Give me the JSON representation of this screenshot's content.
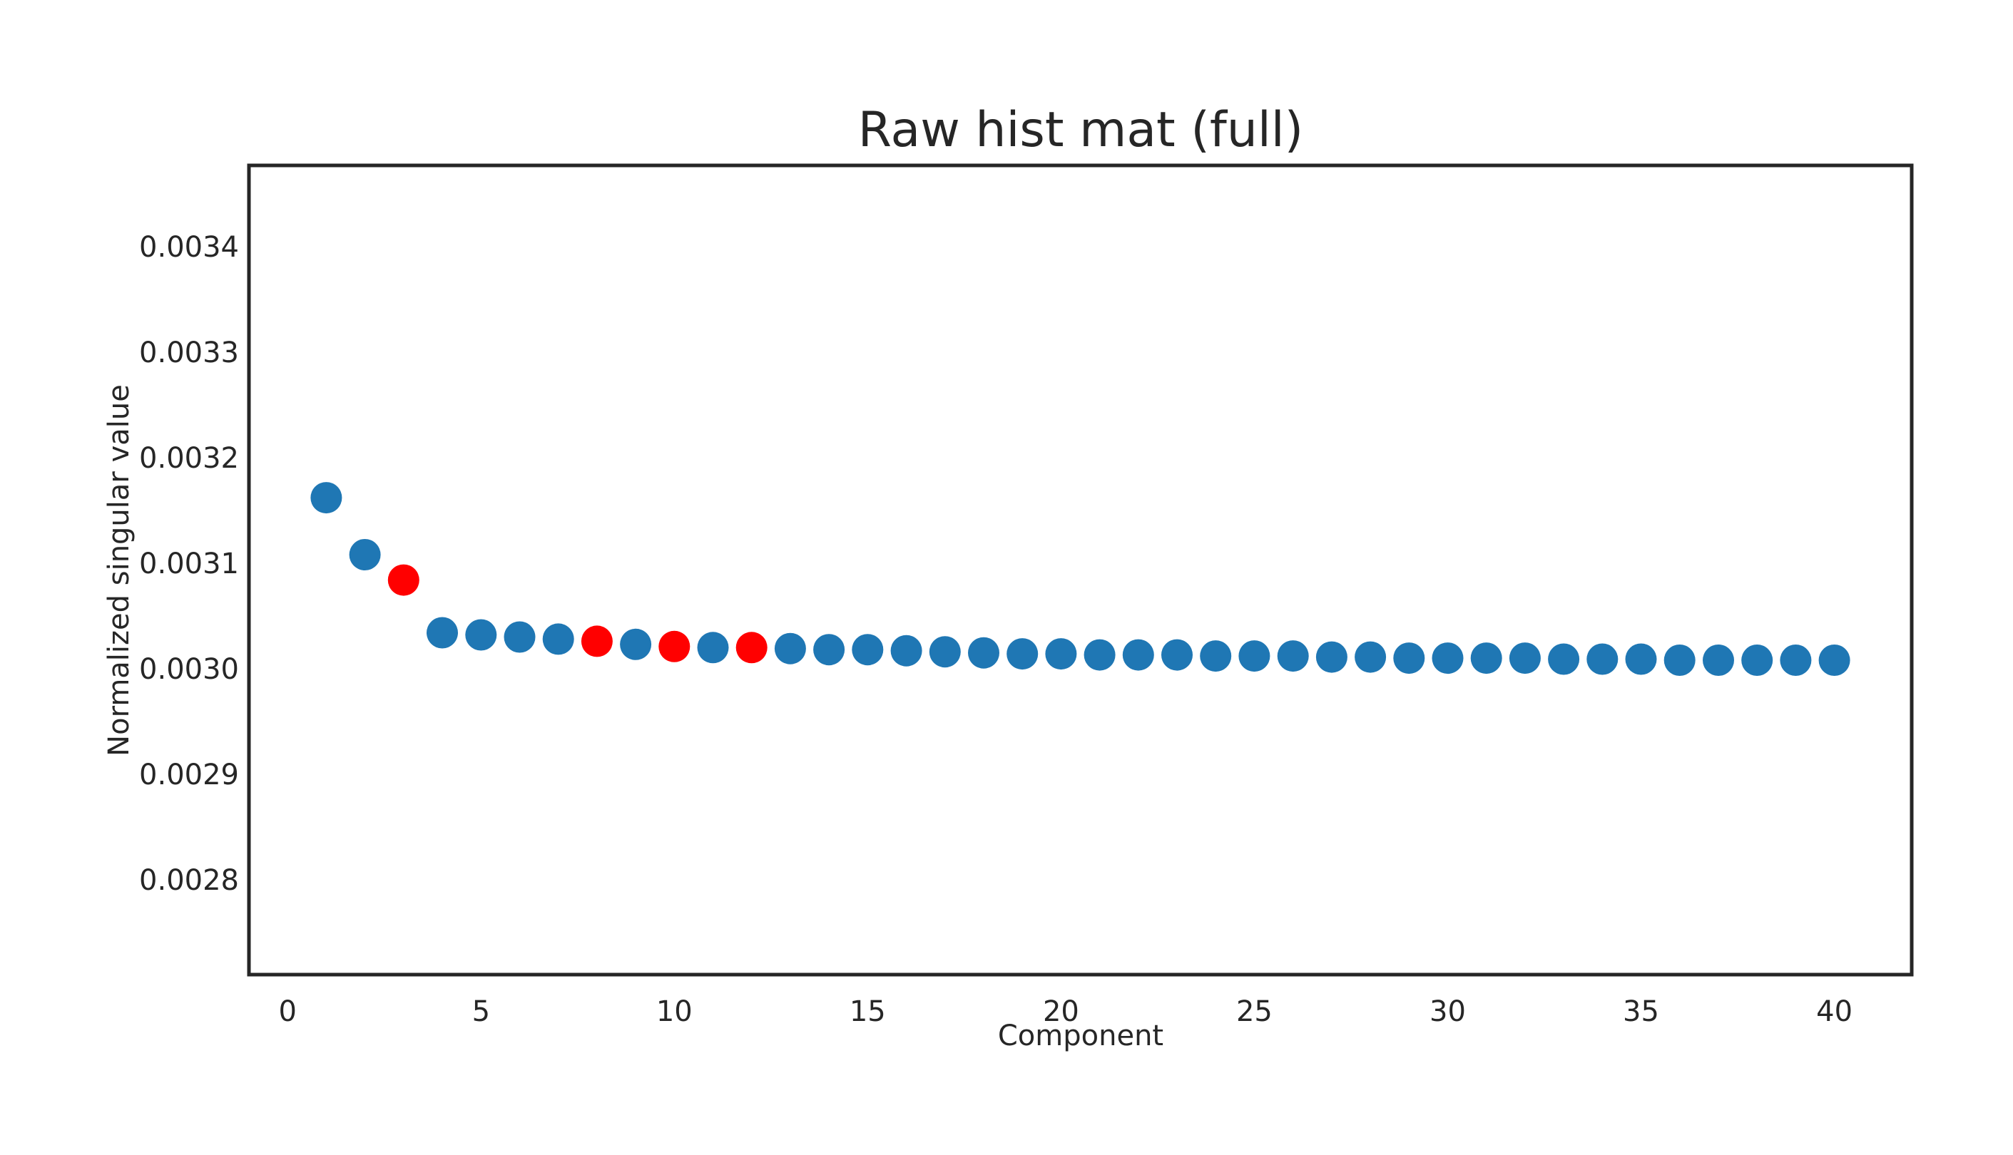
{
  "chart_data": {
    "type": "scatter",
    "title": "Raw hist mat (full)",
    "xlabel": "Component",
    "ylabel": "Normalized singular value",
    "xlim": [
      -1,
      42
    ],
    "ylim": [
      0.00271,
      0.003477
    ],
    "xticks": [
      0,
      5,
      10,
      15,
      20,
      25,
      30,
      35,
      40
    ],
    "xtick_labels": [
      "0",
      "5",
      "10",
      "15",
      "20",
      "25",
      "30",
      "35",
      "40"
    ],
    "yticks": [
      0.0028,
      0.0029,
      0.003,
      0.0031,
      0.0032,
      0.0033,
      0.0034
    ],
    "ytick_labels": [
      "0.0028",
      "0.0029",
      "0.0030",
      "0.0031",
      "0.0032",
      "0.0033",
      "0.0034"
    ],
    "grid": false,
    "colors": {
      "default": "#1f77b4",
      "highlight": "#ff0000",
      "frame": "#262626",
      "text": "#262626"
    },
    "points": [
      {
        "x": 1,
        "y": 0.003162,
        "highlight": false
      },
      {
        "x": 2,
        "y": 0.003108,
        "highlight": false
      },
      {
        "x": 3,
        "y": 0.003084,
        "highlight": true
      },
      {
        "x": 4,
        "y": 0.003034,
        "highlight": false
      },
      {
        "x": 5,
        "y": 0.003032,
        "highlight": false
      },
      {
        "x": 6,
        "y": 0.00303,
        "highlight": false
      },
      {
        "x": 7,
        "y": 0.003028,
        "highlight": false
      },
      {
        "x": 8,
        "y": 0.003026,
        "highlight": true
      },
      {
        "x": 9,
        "y": 0.003023,
        "highlight": false
      },
      {
        "x": 10,
        "y": 0.003021,
        "highlight": true
      },
      {
        "x": 11,
        "y": 0.00302,
        "highlight": false
      },
      {
        "x": 12,
        "y": 0.00302,
        "highlight": true
      },
      {
        "x": 13,
        "y": 0.003019,
        "highlight": false
      },
      {
        "x": 14,
        "y": 0.003018,
        "highlight": false
      },
      {
        "x": 15,
        "y": 0.003018,
        "highlight": false
      },
      {
        "x": 16,
        "y": 0.003017,
        "highlight": false
      },
      {
        "x": 17,
        "y": 0.003016,
        "highlight": false
      },
      {
        "x": 18,
        "y": 0.003015,
        "highlight": false
      },
      {
        "x": 19,
        "y": 0.003014,
        "highlight": false
      },
      {
        "x": 20,
        "y": 0.003014,
        "highlight": false
      },
      {
        "x": 21,
        "y": 0.003013,
        "highlight": false
      },
      {
        "x": 22,
        "y": 0.003013,
        "highlight": false
      },
      {
        "x": 23,
        "y": 0.003013,
        "highlight": false
      },
      {
        "x": 24,
        "y": 0.003012,
        "highlight": false
      },
      {
        "x": 25,
        "y": 0.003012,
        "highlight": false
      },
      {
        "x": 26,
        "y": 0.003012,
        "highlight": false
      },
      {
        "x": 27,
        "y": 0.003011,
        "highlight": false
      },
      {
        "x": 28,
        "y": 0.003011,
        "highlight": false
      },
      {
        "x": 29,
        "y": 0.00301,
        "highlight": false
      },
      {
        "x": 30,
        "y": 0.00301,
        "highlight": false
      },
      {
        "x": 31,
        "y": 0.00301,
        "highlight": false
      },
      {
        "x": 32,
        "y": 0.00301,
        "highlight": false
      },
      {
        "x": 33,
        "y": 0.003009,
        "highlight": false
      },
      {
        "x": 34,
        "y": 0.003009,
        "highlight": false
      },
      {
        "x": 35,
        "y": 0.003009,
        "highlight": false
      },
      {
        "x": 36,
        "y": 0.003008,
        "highlight": false
      },
      {
        "x": 37,
        "y": 0.003008,
        "highlight": false
      },
      {
        "x": 38,
        "y": 0.003008,
        "highlight": false
      },
      {
        "x": 39,
        "y": 0.003008,
        "highlight": false
      },
      {
        "x": 40,
        "y": 0.003008,
        "highlight": false
      }
    ]
  }
}
